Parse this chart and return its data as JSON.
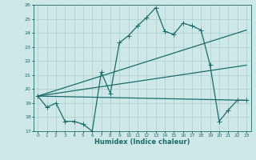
{
  "xlabel": "Humidex (Indice chaleur)",
  "ylabel": "",
  "xlim": [
    -0.5,
    23.5
  ],
  "ylim": [
    17,
    26
  ],
  "yticks": [
    17,
    18,
    19,
    20,
    21,
    22,
    23,
    24,
    25,
    26
  ],
  "xticks": [
    0,
    1,
    2,
    3,
    4,
    5,
    6,
    7,
    8,
    9,
    10,
    11,
    12,
    13,
    14,
    15,
    16,
    17,
    18,
    19,
    20,
    21,
    22,
    23
  ],
  "bg_color": "#cee8e8",
  "grid_color": "#aacece",
  "line_color": "#1a6b6b",
  "jagged_line": {
    "x": [
      0,
      1,
      2,
      3,
      4,
      5,
      6,
      7,
      8,
      9,
      10,
      11,
      12,
      13,
      14,
      15,
      16,
      17,
      18,
      19,
      20,
      21,
      22,
      23
    ],
    "y": [
      19.5,
      18.7,
      19.0,
      17.7,
      17.7,
      17.5,
      17.0,
      21.2,
      19.7,
      23.3,
      23.8,
      24.5,
      25.1,
      25.8,
      24.1,
      23.9,
      24.7,
      24.5,
      24.2,
      21.7,
      17.7,
      18.5,
      19.2,
      19.2
    ]
  },
  "straight_lines": [
    {
      "x": [
        0,
        23
      ],
      "y": [
        19.5,
        24.2
      ]
    },
    {
      "x": [
        0,
        23
      ],
      "y": [
        19.5,
        21.7
      ]
    },
    {
      "x": [
        0,
        23
      ],
      "y": [
        19.5,
        19.2
      ]
    }
  ],
  "marker": "+",
  "marker_size": 4,
  "line_width": 0.9
}
